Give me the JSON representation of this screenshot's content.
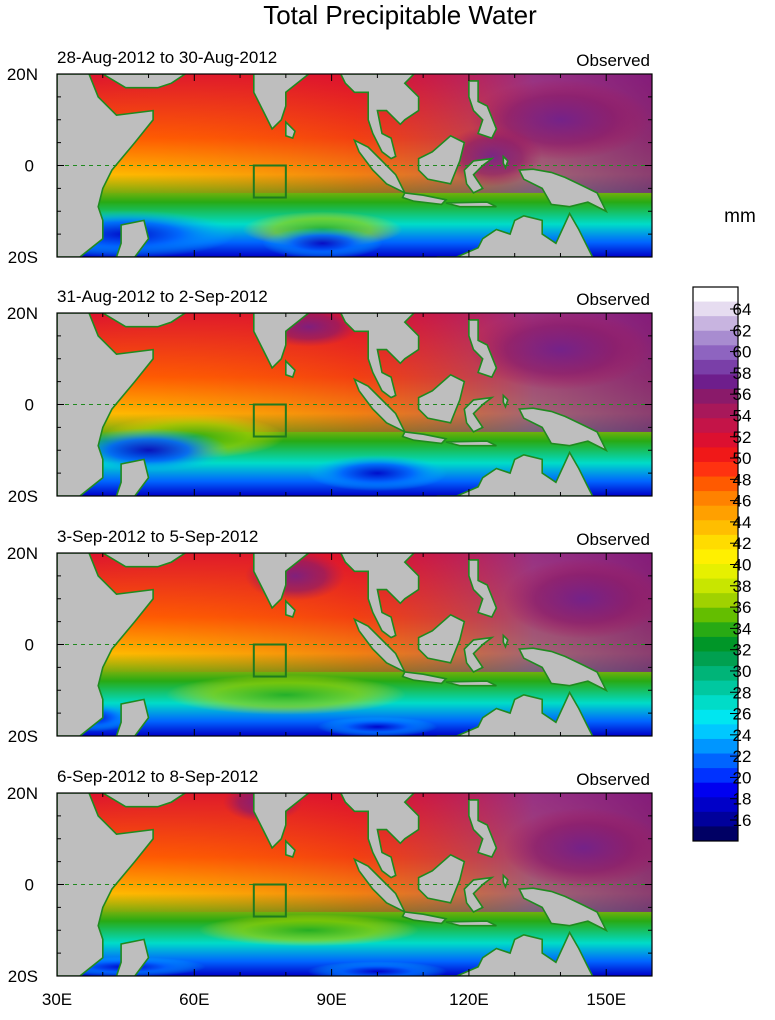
{
  "title": "Total Precipitable Water",
  "unit": "mm",
  "panels": [
    {
      "date_range": "28-Aug-2012 to 30-Aug-2012",
      "label": "Observed"
    },
    {
      "date_range": "31-Aug-2012 to 2-Sep-2012",
      "label": "Observed"
    },
    {
      "date_range": "3-Sep-2012 to 5-Sep-2012",
      "label": "Observed"
    },
    {
      "date_range": "6-Sep-2012 to 8-Sep-2012",
      "label": "Observed"
    }
  ],
  "lat_labels": [
    "20N",
    "0",
    "20S"
  ],
  "lon_labels": [
    "30E",
    "60E",
    "90E",
    "120E",
    "150E"
  ],
  "colorbar": {
    "ticks": [
      "64",
      "62",
      "60",
      "58",
      "56",
      "54",
      "52",
      "50",
      "48",
      "46",
      "44",
      "42",
      "40",
      "38",
      "36",
      "34",
      "32",
      "30",
      "28",
      "26",
      "24",
      "22",
      "20",
      "18",
      "16"
    ],
    "colors": [
      "#ffffff",
      "#e6dcf0",
      "#c8b4e0",
      "#a88cd0",
      "#8e64c0",
      "#7a3fa8",
      "#6e1e8c",
      "#8a1a6a",
      "#a8185a",
      "#c41448",
      "#dc1030",
      "#f01818",
      "#ff3210",
      "#ff5a00",
      "#ff8200",
      "#ffa000",
      "#ffbe00",
      "#ffdc00",
      "#fff000",
      "#e6f000",
      "#c8e600",
      "#a0d200",
      "#64be00",
      "#28aa14",
      "#009628",
      "#00a050",
      "#00b478",
      "#00c8a0",
      "#00dcc8",
      "#00e6f0",
      "#00c8ff",
      "#0096ff",
      "#0064ff",
      "#0032ff",
      "#0000f0",
      "#0000c8",
      "#00009b",
      "#000064"
    ]
  },
  "colors": {
    "land": "#bebebe",
    "coast": "#1f8a1f",
    "box": "#1f7a1f",
    "ocean_hi": "#8a1a6a",
    "ocean_lo": "#0000c8"
  }
}
